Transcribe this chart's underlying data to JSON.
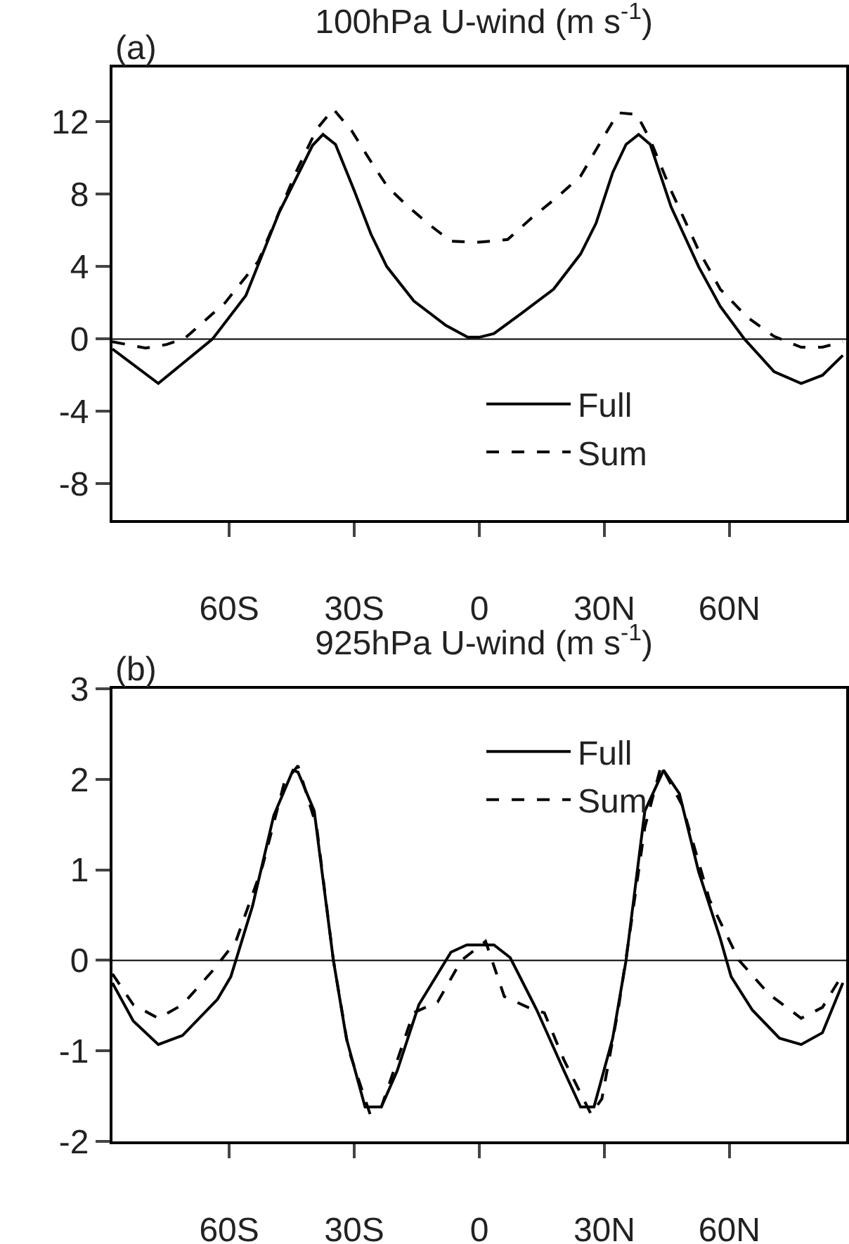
{
  "chart_data": [
    {
      "type": "line",
      "title": "100hPa U-wind (m s$^{-1}$)",
      "annotations": [
        "(a)"
      ],
      "xlim": [
        -88,
        88
      ],
      "xticks": [
        {
          "value": -60,
          "label": "60S"
        },
        {
          "value": -30,
          "label": "30S"
        },
        {
          "value": 0,
          "label": "0"
        },
        {
          "value": 30,
          "label": "30N"
        },
        {
          "value": 60,
          "label": "60N"
        }
      ],
      "ylim": [
        -10,
        15
      ],
      "yticks": [
        -8,
        -4,
        0,
        4,
        8,
        12
      ],
      "grid": false,
      "legend": "bottom",
      "marker": "none",
      "ref_lines": [
        {
          "axis": "y",
          "value": 0,
          "label": null
        }
      ],
      "series": [
        {
          "name": "Full",
          "color": "#000000",
          "line_style": "solid",
          "x": [
            -88,
            -77,
            -64,
            -56,
            -48,
            -40,
            -37.5,
            -34.5,
            -30,
            -26,
            -22.2,
            -15.7,
            -8,
            -2.8,
            0,
            3.5,
            10,
            17.8,
            24.3,
            28,
            32,
            35.2,
            38.2,
            41,
            46,
            52.6,
            57.8,
            63.6,
            70.7,
            77.2,
            82.3,
            87.2
          ],
          "values": [
            -0.55,
            -2.45,
            0,
            2.4,
            7.0,
            10.7,
            11.3,
            10.75,
            8.2,
            5.8,
            4.0,
            2.1,
            0.75,
            0.1,
            0.1,
            0.3,
            1.4,
            2.75,
            4.7,
            6.4,
            9.2,
            10.75,
            11.3,
            10.75,
            7.3,
            4.0,
            1.8,
            0,
            -1.8,
            -2.45,
            -2.0,
            -0.9
          ]
        },
        {
          "name": "Sum",
          "color": "#000000",
          "line_style": "dashed",
          "x": [
            -88,
            -80,
            -75,
            -70.6,
            -61,
            -53,
            -44,
            -39,
            -35,
            -30.6,
            -26,
            -22,
            -17,
            -11.9,
            -6.8,
            0,
            6.8,
            12.6,
            19,
            24.3,
            29.4,
            33.3,
            37.8,
            41,
            46,
            52.6,
            57.8,
            64.3,
            70.7,
            77.2,
            82.3,
            87.2
          ],
          "values": [
            -0.15,
            -0.5,
            -0.3,
            0.05,
            2.0,
            4.3,
            9.2,
            11.6,
            12.7,
            11.5,
            9.8,
            8.4,
            7.3,
            6.3,
            5.4,
            5.35,
            5.5,
            6.7,
            7.9,
            9.0,
            11.0,
            12.5,
            12.4,
            11.0,
            8.2,
            4.9,
            2.75,
            1.2,
            0.15,
            -0.45,
            -0.45,
            -0.15
          ]
        }
      ]
    },
    {
      "type": "line",
      "title": "925hPa U-wind (m s$^{-1}$)",
      "annotations": [
        "(b)"
      ],
      "xlim": [
        -88,
        88
      ],
      "xticks": [
        {
          "value": -60,
          "label": "60S"
        },
        {
          "value": -30,
          "label": "30S"
        },
        {
          "value": 0,
          "label": "0"
        },
        {
          "value": 30,
          "label": "30N"
        },
        {
          "value": 60,
          "label": "60N"
        }
      ],
      "ylim": [
        -2,
        3
      ],
      "yticks": [
        -2,
        -1,
        0,
        1,
        2,
        3
      ],
      "grid": false,
      "legend": "top",
      "marker": "none",
      "ref_lines": [
        {
          "axis": "y",
          "value": 0,
          "label": null
        }
      ],
      "series": [
        {
          "name": "Full",
          "color": "#000000",
          "line_style": "solid",
          "x": [
            -88,
            -83,
            -77,
            -71.2,
            -62.8,
            -59.6,
            -54.4,
            -49.3,
            -44.7,
            -43.5,
            -39.6,
            -35,
            -31.9,
            -27.4,
            -23.5,
            -19.7,
            -14.5,
            -6.8,
            -3,
            3.5,
            7.4,
            13.8,
            20.3,
            24.3,
            27.5,
            32,
            35.2,
            39.7,
            44.2,
            48,
            52.6,
            57.8,
            60.4,
            65.5,
            72,
            77.2,
            82.3,
            87.2
          ],
          "values": [
            -0.25,
            -0.67,
            -0.93,
            -0.83,
            -0.43,
            -0.18,
            0.6,
            1.6,
            2.1,
            2.08,
            1.65,
            0,
            -0.86,
            -1.62,
            -1.62,
            -1.22,
            -0.49,
            0.09,
            0.17,
            0.17,
            0.03,
            -0.55,
            -1.22,
            -1.62,
            -1.62,
            -0.86,
            0,
            1.65,
            2.1,
            1.84,
            0.98,
            0.24,
            -0.18,
            -0.55,
            -0.86,
            -0.93,
            -0.8,
            -0.25
          ]
        },
        {
          "name": "Sum",
          "color": "#000000",
          "line_style": "dashed",
          "x": [
            -88,
            -83,
            -77,
            -71.2,
            -63.5,
            -58.4,
            -52,
            -46.8,
            -43.5,
            -39,
            -35,
            -31.4,
            -26.2,
            -23.5,
            -15.8,
            -10,
            -4.3,
            1.5,
            6,
            11.7,
            15.6,
            20.3,
            26.8,
            29.4,
            33.3,
            35.9,
            39.7,
            43.6,
            48.7,
            55.2,
            62.3,
            69.4,
            77.2,
            82.3,
            87.2
          ],
          "values": [
            -0.15,
            -0.49,
            -0.64,
            -0.49,
            -0.09,
            0.21,
            1.04,
            1.96,
            2.15,
            1.47,
            0,
            -0.98,
            -1.7,
            -1.62,
            -0.58,
            -0.46,
            0,
            0.21,
            -0.4,
            -0.52,
            -0.58,
            -1.1,
            -1.7,
            -1.53,
            -0.55,
            0.24,
            1.47,
            2.15,
            1.71,
            0.67,
            0,
            -0.37,
            -0.64,
            -0.52,
            -0.15
          ]
        }
      ]
    }
  ]
}
